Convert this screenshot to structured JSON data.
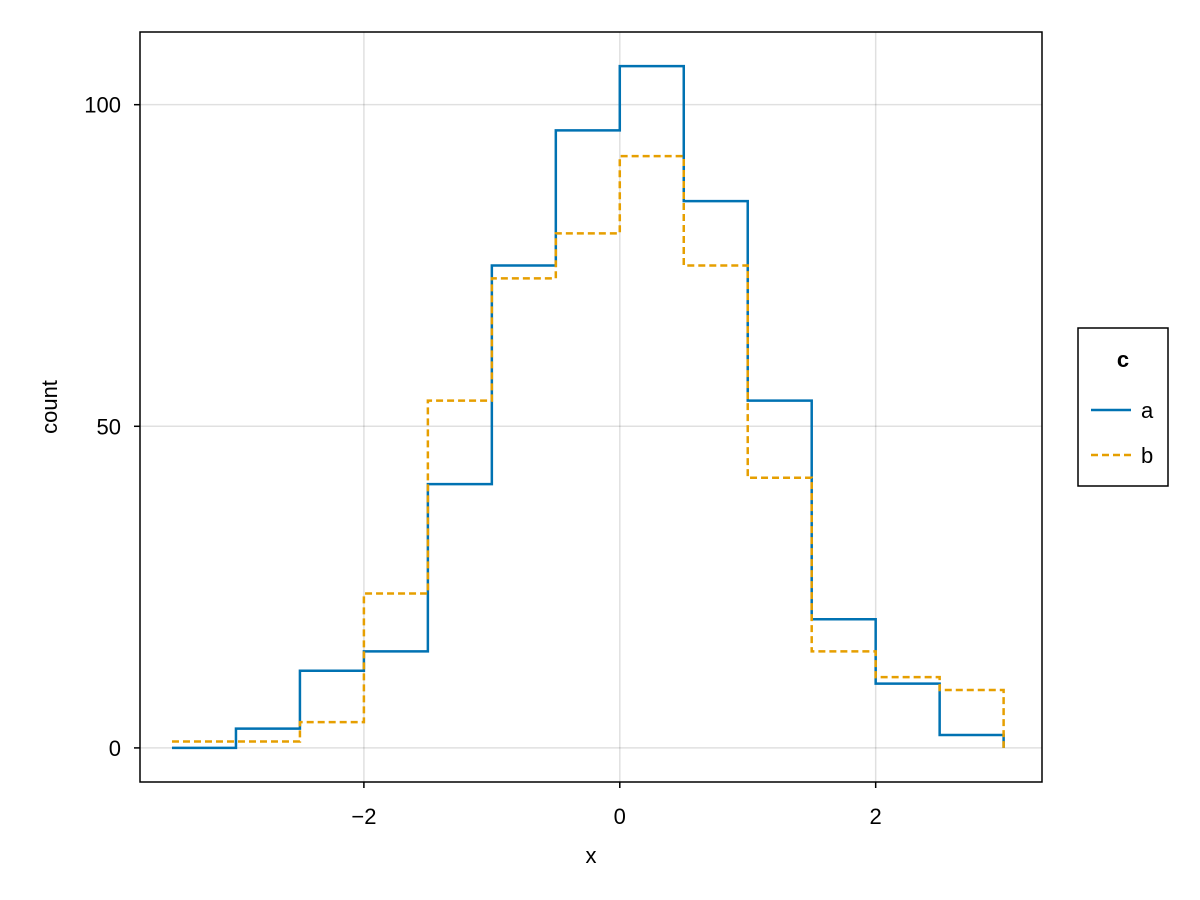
{
  "chart_data": {
    "type": "histogram-step",
    "xlabel": "x",
    "ylabel": "count",
    "xlim": [
      -3.75,
      3.3
    ],
    "ylim": [
      -5.3,
      111.3
    ],
    "x_ticks": [
      -2,
      0,
      2
    ],
    "x_tick_labels": [
      "−2",
      "0",
      "2"
    ],
    "y_ticks": [
      0,
      50,
      100
    ],
    "y_tick_labels": [
      "0",
      "50",
      "100"
    ],
    "grid": true,
    "bin_edges": [
      -3.5,
      -3.0,
      -2.5,
      -2.0,
      -1.5,
      -1.0,
      -0.5,
      0.0,
      0.5,
      1.0,
      1.5,
      2.0,
      2.5,
      3.0
    ],
    "series": [
      {
        "name": "a",
        "color": "#0072B2",
        "dash": "solid",
        "values": [
          0,
          3,
          12,
          15,
          41,
          75,
          96,
          106,
          85,
          54,
          20,
          10,
          2
        ]
      },
      {
        "name": "b",
        "color": "#E69F00",
        "dash": "dashed",
        "values": [
          1,
          1,
          4,
          24,
          54,
          73,
          80,
          92,
          75,
          42,
          15,
          11,
          9
        ]
      }
    ],
    "legend": {
      "title": "c",
      "position": "right"
    }
  }
}
